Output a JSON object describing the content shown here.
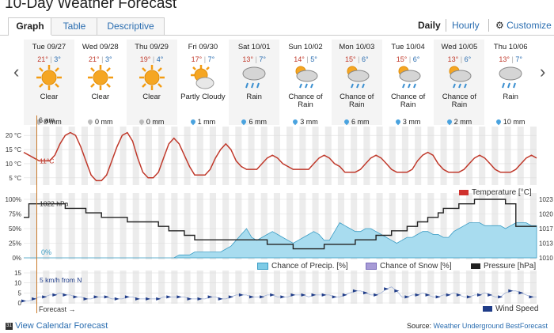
{
  "title": "10-Day Weather Forecast",
  "tabs": [
    {
      "label": "Graph"
    },
    {
      "label": "Table"
    },
    {
      "label": "Descriptive"
    }
  ],
  "view": {
    "daily": "Daily",
    "hourly": "Hourly",
    "customize": "Customize"
  },
  "days": [
    {
      "name": "Tue 09/27",
      "hi": "21°",
      "lo": "3°",
      "cond": "Clear",
      "precip": "0 mm",
      "icon": "sun-icon",
      "precip_icon": "gray-drop"
    },
    {
      "name": "Wed 09/28",
      "hi": "21°",
      "lo": "3°",
      "cond": "Clear",
      "precip": "0 mm",
      "icon": "sun-icon",
      "precip_icon": "gray-drop"
    },
    {
      "name": "Thu 09/29",
      "hi": "19°",
      "lo": "4°",
      "cond": "Clear",
      "precip": "0 mm",
      "icon": "sun-icon",
      "precip_icon": "gray-drop"
    },
    {
      "name": "Fri 09/30",
      "hi": "17°",
      "lo": "7°",
      "cond": "Partly Cloudy",
      "precip": "1 mm",
      "icon": "partly-cloudy-icon",
      "precip_icon": "blue-drop"
    },
    {
      "name": "Sat 10/01",
      "hi": "13°",
      "lo": "7°",
      "cond": "Rain",
      "precip": "6 mm",
      "icon": "rain-icon",
      "precip_icon": "blue-drop"
    },
    {
      "name": "Sun 10/02",
      "hi": "14°",
      "lo": "5°",
      "cond": "Chance of Rain",
      "precip": "3 mm",
      "icon": "chance-rain-icon",
      "precip_icon": "blue-drop"
    },
    {
      "name": "Mon 10/03",
      "hi": "15°",
      "lo": "6°",
      "cond": "Chance of Rain",
      "precip": "6 mm",
      "icon": "chance-rain-icon",
      "precip_icon": "blue-drop"
    },
    {
      "name": "Tue 10/04",
      "hi": "15°",
      "lo": "6°",
      "cond": "Chance of Rain",
      "precip": "3 mm",
      "icon": "chance-rain-icon",
      "precip_icon": "blue-drop"
    },
    {
      "name": "Wed 10/05",
      "hi": "13°",
      "lo": "6°",
      "cond": "Chance of Rain",
      "precip": "2 mm",
      "icon": "chance-rain-icon",
      "precip_icon": "blue-drop"
    },
    {
      "name": "Thu 10/06",
      "hi": "13°",
      "lo": "7°",
      "cond": "Rain",
      "precip": "10 mm",
      "icon": "rain-icon",
      "precip_icon": "blue-drop"
    }
  ],
  "colors": {
    "temp": "#c0392b",
    "precip": "#7ecbe6",
    "pressure": "#222222",
    "wind": "#1f3c88",
    "cursor": "#c97a2a",
    "hi": "#c0392b",
    "lo": "#2a6db0",
    "sun": "#f39c12"
  },
  "chart_data": [
    {
      "type": "line",
      "title": "",
      "ylabel_ticks": [
        "20 °C",
        "15 °C",
        "10 °C",
        "5 °C"
      ],
      "ylim": [
        3,
        22
      ],
      "series": [
        {
          "name": "Temperature [°C]",
          "values": [
            14,
            13,
            12,
            11,
            11,
            11,
            13,
            17,
            20,
            21,
            20,
            16,
            11,
            6,
            4,
            4,
            6,
            11,
            16,
            20,
            21,
            18,
            12,
            7,
            5,
            5,
            7,
            12,
            17,
            19,
            17,
            13,
            9,
            6,
            6,
            6,
            8,
            12,
            15,
            17,
            15,
            11,
            9,
            8,
            8,
            8,
            10,
            12,
            13,
            12,
            10,
            9,
            8,
            8,
            8,
            8,
            10,
            12,
            13,
            12,
            10,
            9,
            7,
            7,
            7,
            8,
            10,
            12,
            13,
            12,
            10,
            8,
            7,
            7,
            7,
            8,
            11,
            13,
            14,
            13,
            10,
            8,
            7,
            7,
            7,
            8,
            10,
            12,
            13,
            12,
            10,
            8,
            7,
            7,
            7,
            8,
            10,
            12,
            13,
            12
          ]
        }
      ],
      "cursor_label": "11°C",
      "cursor_time": "6 am"
    },
    {
      "type": "area",
      "ylabel_ticks": [
        "100%",
        "75%",
        "50%",
        "25%",
        "0%"
      ],
      "right_ticks": [
        "1023",
        "1020",
        "1017",
        "1013",
        "1010"
      ],
      "precip_pct": [
        0,
        0,
        0,
        0,
        0,
        0,
        0,
        0,
        0,
        0,
        0,
        0,
        0,
        0,
        0,
        0,
        0,
        0,
        0,
        0,
        0,
        0,
        0,
        0,
        0,
        0,
        0,
        0,
        0,
        0,
        5,
        5,
        5,
        10,
        10,
        10,
        10,
        10,
        10,
        15,
        20,
        30,
        40,
        50,
        35,
        30,
        35,
        40,
        45,
        40,
        35,
        30,
        25,
        30,
        35,
        40,
        45,
        40,
        30,
        30,
        45,
        60,
        55,
        50,
        45,
        45,
        50,
        50,
        45,
        40,
        35,
        30,
        25,
        30,
        35,
        35,
        40,
        45,
        45,
        40,
        40,
        35,
        35,
        45,
        50,
        55,
        60,
        60,
        60,
        55,
        55,
        55,
        55,
        50,
        55,
        60,
        60,
        60,
        55,
        55
      ],
      "pressure_hpa": [
        1019,
        1022,
        1022,
        1022,
        1022,
        1022,
        1022,
        1022,
        1021,
        1021,
        1021,
        1021,
        1020,
        1020,
        1020,
        1019,
        1019,
        1019,
        1019,
        1019,
        1018,
        1018,
        1018,
        1018,
        1018,
        1018,
        1017,
        1017,
        1016,
        1016,
        1016,
        1015,
        1015,
        1014,
        1014,
        1014,
        1014,
        1014,
        1014,
        1014,
        1014,
        1014,
        1014,
        1014,
        1014,
        1014,
        1014,
        1013,
        1013,
        1013,
        1013,
        1013,
        1012,
        1012,
        1012,
        1012,
        1012,
        1012,
        1013,
        1013,
        1013,
        1013,
        1013,
        1013,
        1014,
        1014,
        1014,
        1014,
        1015,
        1015,
        1015,
        1016,
        1016,
        1016,
        1017,
        1017,
        1018,
        1018,
        1019,
        1019,
        1020,
        1021,
        1021,
        1021,
        1022,
        1022,
        1022,
        1023,
        1023,
        1023,
        1023,
        1023,
        1023,
        1022,
        1022,
        1017,
        1017,
        1017,
        1017,
        1017
      ],
      "pressure_label": "1022 hPa",
      "precip_label": "0%",
      "legend": [
        "Chance of Precip. [%]",
        "Chance of Snow [%]",
        "Pressure [hPa]"
      ]
    },
    {
      "type": "line",
      "ylabel_ticks": [
        "15",
        "10",
        "5",
        "0"
      ],
      "ylim": [
        0,
        15
      ],
      "series": [
        {
          "name": "Wind Speed",
          "values": [
            1,
            1,
            2,
            3,
            3,
            4,
            4,
            5,
            4,
            4,
            3,
            3,
            2,
            2,
            3,
            3,
            3,
            2,
            2,
            2,
            3,
            3,
            2,
            2,
            2,
            2,
            2,
            3,
            3,
            3,
            3,
            3,
            2,
            2,
            2,
            2,
            3,
            3,
            2,
            2,
            3,
            4,
            4,
            4,
            3,
            3,
            3,
            4,
            4,
            3,
            3,
            3,
            4,
            4,
            4,
            3,
            4,
            4,
            4,
            4,
            3,
            3,
            4,
            5,
            6,
            6,
            5,
            4,
            4,
            5,
            7,
            8,
            6,
            3,
            3,
            4,
            4,
            5,
            4,
            3,
            3,
            4,
            4,
            5,
            4,
            3,
            3,
            4,
            4,
            5,
            4,
            3,
            3,
            5,
            6,
            6,
            5,
            4,
            3,
            3
          ]
        }
      ],
      "wind_label": "5 km/h from N"
    }
  ],
  "forecast_label": "Forecast →",
  "legend_temp": "Temperature [°C]",
  "legend_wind": "Wind Speed",
  "footer": {
    "calendar_link": "View Calendar Forecast",
    "source_prefix": "Source: ",
    "source_link": "Weather Underground BestForecast"
  }
}
